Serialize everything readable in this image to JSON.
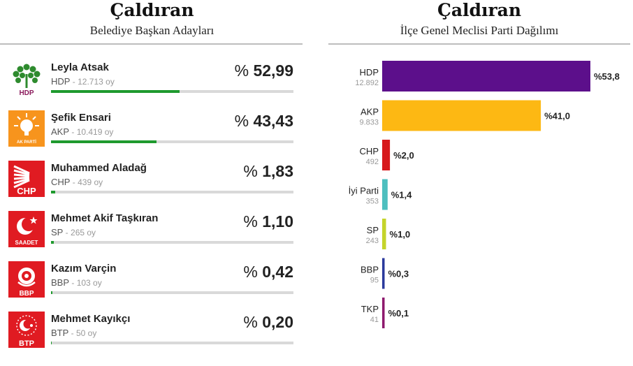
{
  "left": {
    "title": "Çaldıran",
    "subtitle": "Belediye Başkan Adayları",
    "percent_sign": "%",
    "candidates": [
      {
        "name": "Leyla Atsak",
        "party": "HDP",
        "votes": "12.713 oy",
        "percent": "52,99",
        "value": 52.99,
        "logo_text": "HDP"
      },
      {
        "name": "Şefik Ensari",
        "party": "AKP",
        "votes": "10.419 oy",
        "percent": "43,43",
        "value": 43.43,
        "logo_text": "AK PARTİ"
      },
      {
        "name": "Muhammed Aladağ",
        "party": "CHP",
        "votes": "439 oy",
        "percent": "1,83",
        "value": 1.83,
        "logo_text": "CHP"
      },
      {
        "name": "Mehmet Akif Taşkıran",
        "party": "SP",
        "votes": "265 oy",
        "percent": "1,10",
        "value": 1.1,
        "logo_text": "SAADET"
      },
      {
        "name": "Kazım Varçin",
        "party": "BBP",
        "votes": "103 oy",
        "percent": "0,42",
        "value": 0.42,
        "logo_text": "BBP"
      },
      {
        "name": "Mehmet Kayıkçı",
        "party": "BTP",
        "votes": "50 oy",
        "percent": "0,20",
        "value": 0.2,
        "logo_text": "BTP"
      }
    ]
  },
  "right": {
    "title": "Çaldıran",
    "subtitle": "İlçe Genel Meclisi Parti Dağılımı"
  },
  "colors": {
    "bar_fill": "#1f9a2e",
    "hdp_green": "#2e8b2e",
    "hdp_text": "#8b1a5c",
    "akp": "#f7941d",
    "red": "#e01b22"
  },
  "chart_data": {
    "type": "bar",
    "orientation": "horizontal",
    "title": "Çaldıran",
    "subtitle": "İlçe Genel Meclisi Parti Dağılımı",
    "categories": [
      "HDP",
      "AKP",
      "CHP",
      "İyi Parti",
      "SP",
      "BBP",
      "TKP"
    ],
    "votes_labels": [
      "12.892",
      "9.833",
      "492",
      "353",
      "243",
      "95",
      "41"
    ],
    "values": [
      53.8,
      41.0,
      2.0,
      1.4,
      1.0,
      0.3,
      0.1
    ],
    "value_labels": [
      "%53,8",
      "%41,0",
      "%2,0",
      "%1,4",
      "%1,0",
      "%0,3",
      "%0,1"
    ],
    "colors": [
      "#5c0f8b",
      "#fdb813",
      "#d7191c",
      "#4dbfbf",
      "#c4d42a",
      "#2b3a9c",
      "#8e1a6e"
    ],
    "xlim": [
      0,
      53.8
    ]
  }
}
